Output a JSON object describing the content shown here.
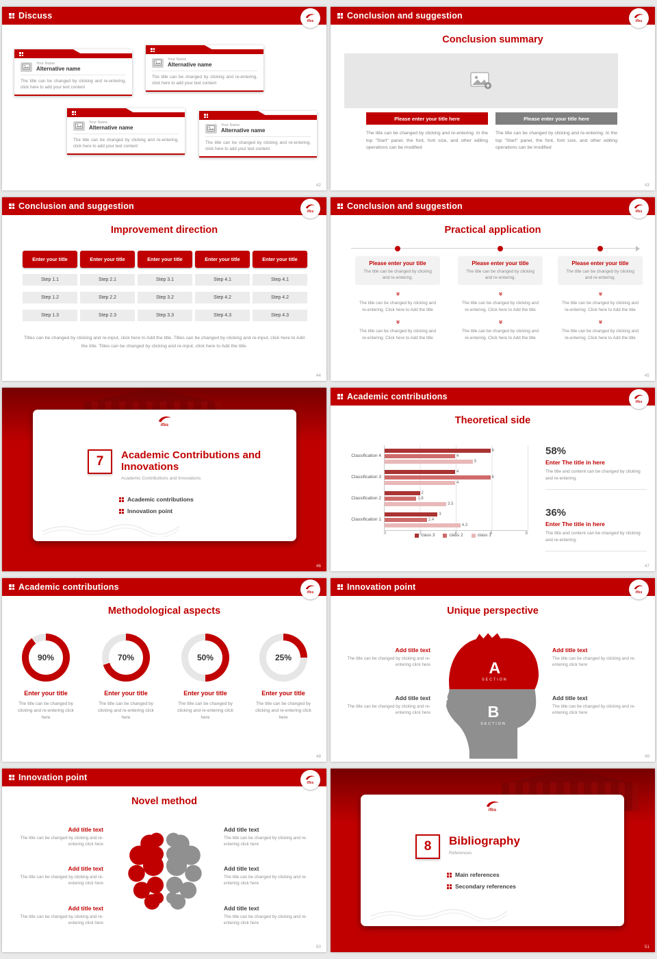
{
  "brand": {
    "logo_text": "ifbs",
    "accent": "#c00000"
  },
  "icons": {
    "chevron_double_down": "»"
  },
  "slides": {
    "discuss": {
      "header": "Discuss",
      "page": "42",
      "cards": [
        {
          "name_label": "Your Name",
          "alt_name": "Alternative name",
          "body": "The title can be changed by clicking and re-entering, click here to add your text content"
        },
        {
          "name_label": "Your Name",
          "alt_name": "Alternative name",
          "body": "The title can be changed by clicking and re-entering, click here to add your text content"
        },
        {
          "name_label": "Your Name",
          "alt_name": "Alternative name",
          "body": "The title can be changed by clicking and re-entering, click here to add your text content"
        },
        {
          "name_label": "Your Name",
          "alt_name": "Alternative name",
          "body": "The title can be changed by clicking and re-entering, click here to add your text content"
        }
      ]
    },
    "conclusion_summary": {
      "header": "Conclusion and suggestion",
      "title": "Conclusion summary",
      "page": "43",
      "buttons": [
        "Please enter your title here",
        "Please enter your title here"
      ],
      "paras": [
        "The title can be changed by clicking and re-entering. In the top \"Start\" panel, the font, font size, and other editing operations can be modified",
        "The title can be changed by clicking and re-entering. In the top \"Start\" panel, the font, font size, and other editing operations can be modified"
      ]
    },
    "improvement": {
      "header": "Conclusion and suggestion",
      "title": "Improvement direction",
      "page": "44",
      "columns": [
        {
          "button": "Enter your title",
          "steps": [
            "Step 1.1",
            "Step 1.2",
            "Step 1.3"
          ]
        },
        {
          "button": "Enter your title",
          "steps": [
            "Step 2.1",
            "Step 2.2",
            "Step 2.3"
          ]
        },
        {
          "button": "Enter your title",
          "steps": [
            "Step 3.1",
            "Step 3.2",
            "Step 3.3"
          ]
        },
        {
          "button": "Enter your title",
          "steps": [
            "Step 4.1",
            "Step 4.2",
            "Step 4.3"
          ]
        },
        {
          "button": "Enter your title",
          "steps": [
            "Step 4.1",
            "Step 4.2",
            "Step 4.3"
          ]
        }
      ],
      "footer": "Titles can be changed by clicking and re-input, click here to Add the title. Titles can be changed by clicking and re-input, click here to Add the title. Titles can be changed by clicking and re-input, click here to Add the title."
    },
    "practical": {
      "header": "Conclusion and suggestion",
      "title": "Practical application",
      "page": "45",
      "columns": [
        {
          "title": "Please enter your title",
          "lead": "The title can be changed by clicking and re-entering.",
          "blocks": [
            "The title can be changed by clicking and re-entering. Click here to Add the title",
            "The title can be changed by clicking and re-entering. Click here to Add the title"
          ]
        },
        {
          "title": "Please enter your title",
          "lead": "The title can be changed by clicking and re-entering.",
          "blocks": [
            "The title can be changed by clicking and re-entering. Click here to Add the title",
            "The title can be changed by clicking and re-entering. Click here to Add the title"
          ]
        },
        {
          "title": "Please enter your title",
          "lead": "The title can be changed by clicking and re-entering.",
          "blocks": [
            "The title can be changed by clicking and re-entering. Click here to Add the title",
            "The title can be changed by clicking and re-entering. Click here to Add the title"
          ]
        }
      ]
    },
    "section7": {
      "number": "7",
      "title": "Academic Contributions and Innovations",
      "subtitle": "Academic Contributions and Innovations",
      "bullets": [
        "Academic contributions",
        "Innovation point"
      ],
      "page": "46"
    },
    "theoretical": {
      "header": "Academic contributions",
      "title": "Theoretical side",
      "page": "47",
      "stats": [
        {
          "pct": "58%",
          "title": "Enter The title in here",
          "body": "The title and content can be changed by clicking and re-entering."
        },
        {
          "pct": "36%",
          "title": "Enter The title in here",
          "body": "The title and content can be changed by clicking and re-entering."
        }
      ]
    },
    "methodological": {
      "header": "Academic contributions",
      "title": "Methodological aspects",
      "page": "48",
      "donuts": [
        {
          "pct": 90,
          "label": "90%",
          "title": "Enter your title",
          "body": "The title can be changed by clicking and re-entering click here"
        },
        {
          "pct": 70,
          "label": "70%",
          "title": "Enter your title",
          "body": "The title can be changed by clicking and re-entering click here"
        },
        {
          "pct": 50,
          "label": "50%",
          "title": "Enter your title",
          "body": "The title can be changed by clicking and re-entering click here"
        },
        {
          "pct": 25,
          "label": "25%",
          "title": "Enter your title",
          "body": "The title can be changed by clicking and re-entering click here"
        }
      ]
    },
    "unique": {
      "header": "Innovation point",
      "title": "Unique perspective",
      "page": "49",
      "sections": [
        {
          "letter": "A",
          "label": "SECTION"
        },
        {
          "letter": "B",
          "label": "SECTION"
        }
      ],
      "left": [
        {
          "title": "Add title text",
          "body": "The title can be changed by clicking and re-entering click here"
        },
        {
          "title": "Add title text",
          "body": "The title can be changed by clicking and re-entering click here"
        }
      ],
      "right": [
        {
          "title": "Add title text",
          "body": "The title can be changed by clicking and re-entering click here"
        },
        {
          "title": "Add title text",
          "body": "The title can be changed by clicking and re-entering click here"
        }
      ]
    },
    "novel": {
      "header": "Innovation point",
      "title": "Novel method",
      "page": "50",
      "left": [
        {
          "title": "Add title text",
          "body": "The title can be changed by clicking and re-entering click here"
        },
        {
          "title": "Add title text",
          "body": "The title can be changed by clicking and re-entering click here"
        },
        {
          "title": "Add title text",
          "body": "The title can be changed by clicking and re-entering click here"
        }
      ],
      "right": [
        {
          "title": "Add title text",
          "body": "The title can be changed by clicking and re-entering click here"
        },
        {
          "title": "Add title text",
          "body": "The title can be changed by clicking and re-entering click here"
        },
        {
          "title": "Add title text",
          "body": "The title can be changed by clicking and re-entering click here"
        }
      ]
    },
    "section8": {
      "number": "8",
      "title": "Bibliography",
      "subtitle": "References",
      "bullets": [
        "Main references",
        "Secondary references"
      ],
      "page": "51"
    }
  },
  "chart_data": {
    "type": "bar",
    "orientation": "horizontal",
    "title": "Theoretical side",
    "categories": [
      "Classification 1",
      "Classification 2",
      "Classification 3",
      "Classification 4"
    ],
    "series": [
      {
        "name": "class 3",
        "color": "#aa3333",
        "values": [
          3,
          2,
          4,
          6
        ]
      },
      {
        "name": "class 2",
        "color": "#cf6a6a",
        "values": [
          2.4,
          1.8,
          6,
          4
        ]
      },
      {
        "name": "class 1",
        "color": "#e9b8b8",
        "values": [
          4.3,
          3.5,
          4,
          5
        ]
      }
    ],
    "xlim": [
      0,
      8
    ],
    "xticks": [
      0,
      2,
      4,
      6,
      8
    ],
    "legend_position": "bottom",
    "value_labels": true,
    "grid": true
  }
}
